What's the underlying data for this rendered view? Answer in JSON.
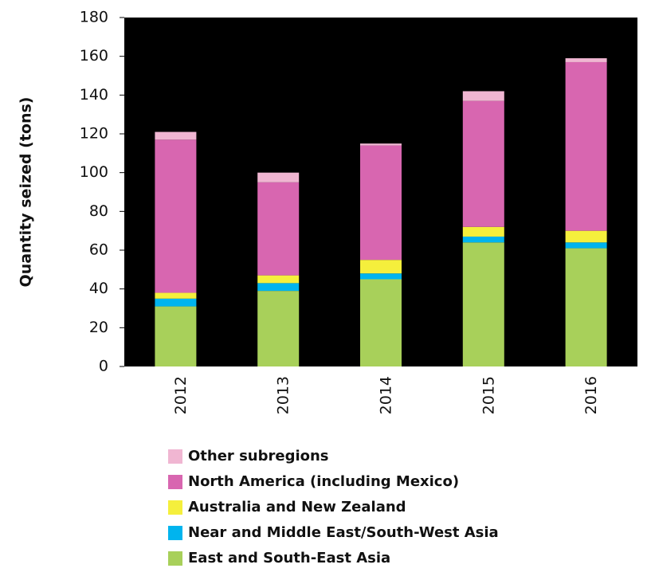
{
  "chart_data": {
    "type": "stacked_bar",
    "y_label": "Quantity seized (tons)",
    "categories": [
      "2012",
      "2013",
      "2014",
      "2015",
      "2016"
    ],
    "series": [
      {
        "name": "East and South-East Asia",
        "color": "#a8d05a",
        "values": [
          31,
          39,
          45,
          64,
          61
        ]
      },
      {
        "name": "Near and Middle East/South-West Asia",
        "color": "#00b4ee",
        "values": [
          4,
          4,
          3,
          3,
          3
        ]
      },
      {
        "name": "Australia and New Zealand",
        "color": "#f5ef3c",
        "values": [
          3,
          4,
          7,
          5,
          6
        ]
      },
      {
        "name": "North America (including Mexico)",
        "color": "#d866b0",
        "values": [
          79,
          48,
          59,
          65,
          87
        ]
      },
      {
        "name": "Other subregions",
        "color": "#f0b6d2",
        "values": [
          4,
          5,
          1,
          5,
          2
        ]
      }
    ],
    "ylim": [
      0,
      180
    ],
    "yticks": [
      0,
      20,
      40,
      60,
      80,
      100,
      120,
      140,
      160,
      180
    ],
    "grid": false,
    "background": "#000000",
    "legend": "bottom"
  }
}
